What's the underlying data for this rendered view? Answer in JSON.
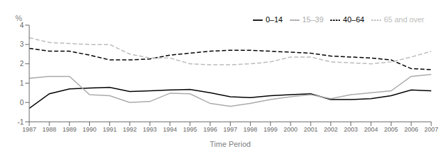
{
  "chart_data": {
    "type": "line",
    "xlabel": "Time Period",
    "ylabel": "%",
    "x": [
      1987,
      1988,
      1989,
      1990,
      1991,
      1992,
      1993,
      1994,
      1995,
      1996,
      1997,
      1998,
      1999,
      2000,
      2001,
      2002,
      2003,
      2004,
      2005,
      2006,
      2007
    ],
    "xlim": [
      1987,
      2007
    ],
    "xticks": [
      1987,
      1988,
      1989,
      1990,
      1991,
      1992,
      1993,
      1994,
      1995,
      1996,
      1997,
      1998,
      1999,
      2000,
      2001,
      2002,
      2003,
      2004,
      2005,
      2006,
      2007
    ],
    "ylim": [
      -1,
      4
    ],
    "yticks": [
      -1,
      0,
      1,
      2,
      3,
      4
    ],
    "grid": false,
    "legend": "upper right",
    "series": [
      {
        "name": "0–14",
        "color": "#000000",
        "line_style": "solid",
        "values": [
          -0.3,
          0.45,
          0.7,
          0.75,
          0.78,
          0.57,
          0.6,
          0.65,
          0.67,
          0.5,
          0.3,
          0.25,
          0.35,
          0.4,
          0.45,
          0.15,
          0.15,
          0.2,
          0.35,
          0.65,
          0.6
        ]
      },
      {
        "name": "15–39",
        "color": "#aaaaaa",
        "line_style": "solid",
        "values": [
          1.25,
          1.35,
          1.35,
          0.4,
          0.35,
          0.0,
          0.05,
          0.48,
          0.45,
          -0.05,
          -0.2,
          -0.05,
          0.15,
          0.3,
          0.4,
          0.2,
          0.4,
          0.5,
          0.6,
          1.35,
          1.45
        ]
      },
      {
        "name": "40–64",
        "color": "#000000",
        "line_style": "dashed",
        "values": [
          2.8,
          2.65,
          2.65,
          2.45,
          2.2,
          2.2,
          2.25,
          2.45,
          2.55,
          2.65,
          2.7,
          2.7,
          2.65,
          2.6,
          2.55,
          2.4,
          2.35,
          2.3,
          2.2,
          1.75,
          1.7
        ]
      },
      {
        "name": "65 and over",
        "color": "#bbbbbb",
        "line_style": "dashed",
        "values": [
          3.35,
          3.1,
          3.05,
          3.0,
          3.0,
          2.5,
          2.3,
          2.3,
          2.0,
          1.95,
          1.95,
          2.0,
          2.1,
          2.35,
          2.35,
          2.1,
          2.05,
          2.0,
          2.1,
          2.35,
          2.65
        ]
      }
    ]
  }
}
